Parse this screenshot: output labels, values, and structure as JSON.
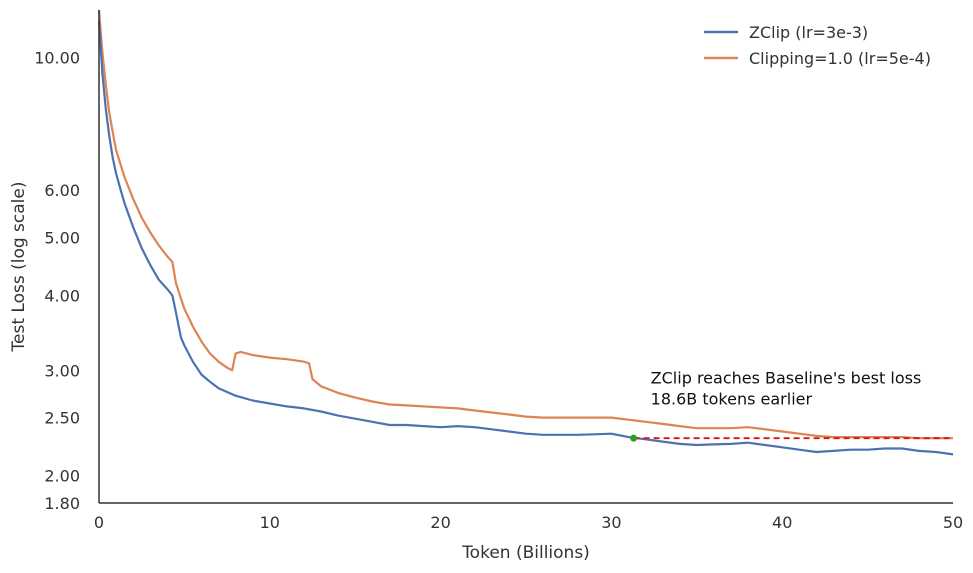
{
  "chart_data": {
    "type": "line",
    "xlabel": "Token (Billions)",
    "ylabel": "Test Loss (log scale)",
    "xlim": [
      0,
      50
    ],
    "ylim": [
      1.8,
      12.0
    ],
    "yscale": "log",
    "xticks": [
      0,
      10,
      20,
      30,
      40,
      50
    ],
    "xtick_labels": [
      "0",
      "10",
      "20",
      "30",
      "40",
      "50"
    ],
    "yticks": [
      1.8,
      2.0,
      2.5,
      3.0,
      4.0,
      5.0,
      6.0,
      10.0
    ],
    "ytick_labels": [
      "1.80",
      "2.00",
      "2.50",
      "3.00",
      "4.00",
      "5.00",
      "6.00",
      "10.00"
    ],
    "grid": false,
    "legend_position": "top-right",
    "series": [
      {
        "name": "ZClip (lr=3e-3)",
        "color": "#4c72b0",
        "points": [
          [
            0,
            11.5
          ],
          [
            0.2,
            9.4
          ],
          [
            0.4,
            8.2
          ],
          [
            0.6,
            7.4
          ],
          [
            0.8,
            6.8
          ],
          [
            1.0,
            6.4
          ],
          [
            1.2,
            6.1
          ],
          [
            1.5,
            5.7
          ],
          [
            2.0,
            5.2
          ],
          [
            2.5,
            4.8
          ],
          [
            3.0,
            4.5
          ],
          [
            3.5,
            4.25
          ],
          [
            4.0,
            4.1
          ],
          [
            4.3,
            4.0
          ],
          [
            4.5,
            3.75
          ],
          [
            4.8,
            3.4
          ],
          [
            5.0,
            3.3
          ],
          [
            5.5,
            3.1
          ],
          [
            6.0,
            2.95
          ],
          [
            6.5,
            2.87
          ],
          [
            7.0,
            2.8
          ],
          [
            8.0,
            2.72
          ],
          [
            9.0,
            2.67
          ],
          [
            10.0,
            2.64
          ],
          [
            11.0,
            2.61
          ],
          [
            12.0,
            2.59
          ],
          [
            13.0,
            2.56
          ],
          [
            14.0,
            2.52
          ],
          [
            15.0,
            2.49
          ],
          [
            16.0,
            2.46
          ],
          [
            17.0,
            2.43
          ],
          [
            18.0,
            2.43
          ],
          [
            19.0,
            2.42
          ],
          [
            20.0,
            2.41
          ],
          [
            21.0,
            2.42
          ],
          [
            22.0,
            2.41
          ],
          [
            23.0,
            2.39
          ],
          [
            24.0,
            2.37
          ],
          [
            25.0,
            2.35
          ],
          [
            26.0,
            2.34
          ],
          [
            27.0,
            2.34
          ],
          [
            28.0,
            2.34
          ],
          [
            29.0,
            2.345
          ],
          [
            30.0,
            2.35
          ],
          [
            31.0,
            2.32
          ],
          [
            32.0,
            2.3
          ],
          [
            33.0,
            2.28
          ],
          [
            34.0,
            2.26
          ],
          [
            35.0,
            2.25
          ],
          [
            36.0,
            2.255
          ],
          [
            37.0,
            2.26
          ],
          [
            38.0,
            2.27
          ],
          [
            39.0,
            2.25
          ],
          [
            40.0,
            2.23
          ],
          [
            41.0,
            2.21
          ],
          [
            42.0,
            2.19
          ],
          [
            43.0,
            2.2
          ],
          [
            44.0,
            2.21
          ],
          [
            45.0,
            2.21
          ],
          [
            46.0,
            2.22
          ],
          [
            47.0,
            2.22
          ],
          [
            48.0,
            2.2
          ],
          [
            49.0,
            2.19
          ],
          [
            50.0,
            2.17
          ]
        ]
      },
      {
        "name": "Clipping=1.0 (lr=5e-4)",
        "color": "#dd8452",
        "points": [
          [
            0,
            12.0
          ],
          [
            0.2,
            10.2
          ],
          [
            0.4,
            9.0
          ],
          [
            0.6,
            8.1
          ],
          [
            0.8,
            7.5
          ],
          [
            1.0,
            7.0
          ],
          [
            1.5,
            6.3
          ],
          [
            2.0,
            5.8
          ],
          [
            2.5,
            5.4
          ],
          [
            3.0,
            5.1
          ],
          [
            3.5,
            4.85
          ],
          [
            4.0,
            4.65
          ],
          [
            4.3,
            4.55
          ],
          [
            4.5,
            4.2
          ],
          [
            4.8,
            3.95
          ],
          [
            5.0,
            3.8
          ],
          [
            5.5,
            3.55
          ],
          [
            6.0,
            3.35
          ],
          [
            6.5,
            3.2
          ],
          [
            7.0,
            3.1
          ],
          [
            7.5,
            3.03
          ],
          [
            7.8,
            3.0
          ],
          [
            8.0,
            3.2
          ],
          [
            8.3,
            3.22
          ],
          [
            9.0,
            3.18
          ],
          [
            10.0,
            3.15
          ],
          [
            11.0,
            3.13
          ],
          [
            12.0,
            3.1
          ],
          [
            12.3,
            3.08
          ],
          [
            12.5,
            2.9
          ],
          [
            13.0,
            2.82
          ],
          [
            14.0,
            2.75
          ],
          [
            15.0,
            2.7
          ],
          [
            16.0,
            2.66
          ],
          [
            17.0,
            2.63
          ],
          [
            18.0,
            2.62
          ],
          [
            19.0,
            2.61
          ],
          [
            20.0,
            2.6
          ],
          [
            21.0,
            2.59
          ],
          [
            22.0,
            2.57
          ],
          [
            23.0,
            2.55
          ],
          [
            24.0,
            2.53
          ],
          [
            25.0,
            2.51
          ],
          [
            26.0,
            2.5
          ],
          [
            27.0,
            2.5
          ],
          [
            28.0,
            2.5
          ],
          [
            29.0,
            2.5
          ],
          [
            30.0,
            2.5
          ],
          [
            31.0,
            2.48
          ],
          [
            32.0,
            2.46
          ],
          [
            33.0,
            2.44
          ],
          [
            34.0,
            2.42
          ],
          [
            35.0,
            2.4
          ],
          [
            36.0,
            2.4
          ],
          [
            37.0,
            2.4
          ],
          [
            38.0,
            2.41
          ],
          [
            39.0,
            2.39
          ],
          [
            40.0,
            2.37
          ],
          [
            41.0,
            2.35
          ],
          [
            42.0,
            2.33
          ],
          [
            43.0,
            2.32
          ],
          [
            44.0,
            2.32
          ],
          [
            45.0,
            2.32
          ],
          [
            46.0,
            2.32
          ],
          [
            47.0,
            2.32
          ],
          [
            48.0,
            2.31
          ],
          [
            49.0,
            2.31
          ],
          [
            50.0,
            2.31
          ]
        ]
      }
    ],
    "reference_line": {
      "y": 2.31,
      "x_start": 31.3,
      "x_end": 50,
      "color": "#e01010",
      "style": "dashed"
    },
    "marker": {
      "x": 31.3,
      "y": 2.31,
      "color": "#2a9d2a"
    },
    "annotation": {
      "lines": [
        "ZClip reaches Baseline's best loss",
        "18.6B tokens earlier"
      ],
      "x": 32.3,
      "y": 2.85
    }
  }
}
